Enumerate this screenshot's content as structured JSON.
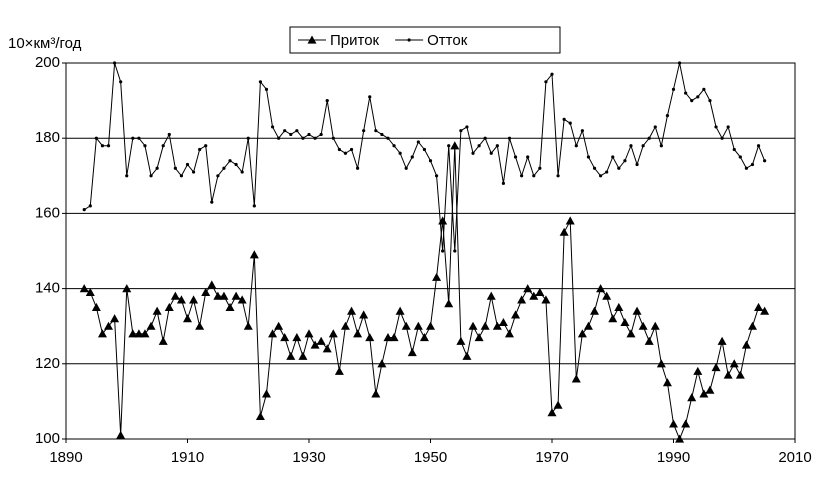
{
  "chart_data": {
    "type": "line",
    "y_label": "10×км³/год",
    "x": [
      1893,
      1894,
      1895,
      1896,
      1897,
      1898,
      1899,
      1900,
      1901,
      1902,
      1903,
      1904,
      1905,
      1906,
      1907,
      1908,
      1909,
      1910,
      1911,
      1912,
      1913,
      1914,
      1915,
      1916,
      1917,
      1918,
      1919,
      1920,
      1921,
      1922,
      1923,
      1924,
      1925,
      1926,
      1927,
      1928,
      1929,
      1930,
      1931,
      1932,
      1933,
      1934,
      1935,
      1936,
      1937,
      1938,
      1939,
      1940,
      1941,
      1942,
      1943,
      1944,
      1945,
      1946,
      1947,
      1948,
      1949,
      1950,
      1951,
      1952,
      1953,
      1954,
      1955,
      1956,
      1957,
      1958,
      1959,
      1960,
      1961,
      1962,
      1963,
      1964,
      1965,
      1966,
      1967,
      1968,
      1969,
      1970,
      1971,
      1972,
      1973,
      1974,
      1975,
      1976,
      1977,
      1978,
      1979,
      1980,
      1981,
      1982,
      1983,
      1984,
      1985,
      1986,
      1987,
      1988,
      1989,
      1990,
      1991,
      1992,
      1993,
      1994,
      1995,
      1996,
      1997,
      1998,
      1999,
      2000,
      2001,
      2002,
      2003,
      2004,
      2005
    ],
    "series": [
      {
        "name": "Приток",
        "color": "#000000",
        "marker": "triangle",
        "values": [
          140,
          139,
          135,
          128,
          130,
          132,
          101,
          140,
          128,
          128,
          128,
          130,
          134,
          126,
          135,
          138,
          137,
          132,
          137,
          130,
          139,
          141,
          138,
          138,
          135,
          138,
          137,
          130,
          149,
          106,
          112,
          128,
          130,
          127,
          122,
          127,
          122,
          128,
          125,
          126,
          124,
          128,
          118,
          130,
          134,
          128,
          133,
          127,
          112,
          120,
          127,
          127,
          134,
          130,
          123,
          130,
          127,
          130,
          143,
          158,
          136,
          178,
          126,
          122,
          130,
          127,
          130,
          138,
          130,
          131,
          128,
          133,
          137,
          140,
          138,
          139,
          137,
          107,
          109,
          155,
          158,
          116,
          128,
          130,
          134,
          140,
          138,
          132,
          135,
          131,
          128,
          134,
          130,
          126,
          130,
          120,
          115,
          104,
          100,
          104,
          111,
          118,
          112,
          113,
          119,
          126,
          117,
          120,
          117,
          125,
          130,
          135,
          134
        ]
      },
      {
        "name": "Отток",
        "color": "#000000",
        "marker": "dot",
        "values": [
          161,
          162,
          180,
          178,
          178,
          200,
          195,
          170,
          180,
          180,
          178,
          170,
          172,
          178,
          181,
          172,
          170,
          173,
          171,
          177,
          178,
          163,
          170,
          172,
          174,
          173,
          171,
          180,
          162,
          195,
          193,
          183,
          180,
          182,
          181,
          182,
          180,
          181,
          180,
          181,
          190,
          180,
          177,
          176,
          177,
          172,
          182,
          191,
          182,
          181,
          180,
          178,
          176,
          172,
          175,
          179,
          177,
          174,
          170,
          150,
          178,
          150,
          182,
          183,
          176,
          178,
          180,
          176,
          178,
          168,
          180,
          175,
          170,
          175,
          170,
          172,
          195,
          197,
          170,
          185,
          184,
          178,
          182,
          175,
          172,
          170,
          171,
          175,
          172,
          174,
          178,
          173,
          178,
          180,
          183,
          178,
          186,
          193,
          200,
          192,
          190,
          191,
          193,
          190,
          183,
          180,
          183,
          177,
          175,
          172,
          173,
          178,
          174
        ]
      }
    ],
    "xlim": [
      1890,
      2010
    ],
    "xticks": [
      1890,
      1910,
      1930,
      1950,
      1970,
      1990,
      2010
    ],
    "ylim": [
      100,
      200
    ],
    "yticks": [
      100,
      120,
      140,
      160,
      180,
      200
    ],
    "grid": true,
    "legend": "top"
  }
}
